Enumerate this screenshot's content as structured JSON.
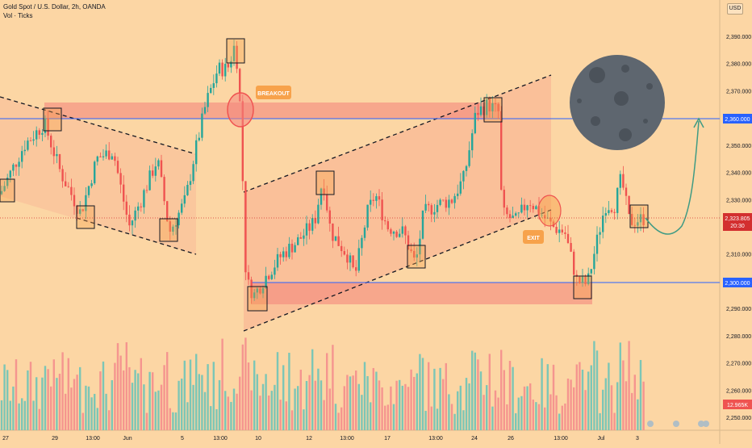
{
  "header": {
    "title": "Gold Spot / U.S. Dollar, 2h, OANDA",
    "indicator": "Vol · Ticks",
    "currency": "USD"
  },
  "colors": {
    "background": "#fcd6a4",
    "up": "#26a69a",
    "down": "#ef5350",
    "vol_up": "#7cc6b6",
    "vol_down": "#f5958f",
    "zone": "#f4877d",
    "level_line": "#2962ff",
    "price_tag": "#d32f2f",
    "callout": "#f7a24b",
    "moon": "#5e666f",
    "projection": "#3f9b84"
  },
  "price_scale": [
    "2,390.000",
    "2,380.000",
    "2,370.000",
    "2,360.000",
    "2,350.000",
    "2,340.000",
    "2,330.000",
    "2,320.000",
    "2,310.000",
    "2,300.000",
    "2,290.000",
    "2,280.000",
    "2,270.000",
    "2,260.000",
    "2,250.000"
  ],
  "time_axis": [
    "27",
    "29",
    "13:00",
    "Jun",
    "5",
    "13:00",
    "10",
    "12",
    "13:00",
    "17",
    "13:00",
    "24",
    "26",
    "13:00",
    "Jul",
    "3"
  ],
  "tags": {
    "level_upper": "2,360.000",
    "level_lower": "2,300.000",
    "last_price": "2,323.805",
    "countdown": "20:30",
    "volume": "12.965K"
  },
  "annotations": {
    "breakout": "BREAKOUT",
    "exit": "EXIT"
  },
  "chart_data": {
    "type": "candlestick",
    "symbol": "XAUUSD",
    "interval": "2h",
    "ylim": [
      2248,
      2398
    ],
    "key_levels": [
      2360,
      2300
    ],
    "last_price": 2323.805,
    "price_path": [
      [
        0,
        2332
      ],
      [
        10,
        2338
      ],
      [
        30,
        2350
      ],
      [
        55,
        2358
      ],
      [
        75,
        2340
      ],
      [
        100,
        2325
      ],
      [
        120,
        2345
      ],
      [
        140,
        2348
      ],
      [
        160,
        2320
      ],
      [
        175,
        2330
      ],
      [
        195,
        2345
      ],
      [
        210,
        2318
      ],
      [
        230,
        2330
      ],
      [
        240,
        2345
      ],
      [
        255,
        2365
      ],
      [
        270,
        2378
      ],
      [
        282,
        2378
      ],
      [
        292,
        2388
      ],
      [
        298,
        2362
      ],
      [
        305,
        2300
      ],
      [
        315,
        2295
      ],
      [
        330,
        2302
      ],
      [
        350,
        2310
      ],
      [
        370,
        2315
      ],
      [
        390,
        2322
      ],
      [
        400,
        2338
      ],
      [
        410,
        2318
      ],
      [
        430,
        2310
      ],
      [
        440,
        2302
      ],
      [
        455,
        2325
      ],
      [
        465,
        2332
      ],
      [
        480,
        2320
      ],
      [
        500,
        2318
      ],
      [
        515,
        2306
      ],
      [
        525,
        2325
      ],
      [
        540,
        2328
      ],
      [
        560,
        2330
      ],
      [
        575,
        2338
      ],
      [
        590,
        2362
      ],
      [
        605,
        2365
      ],
      [
        618,
        2362
      ],
      [
        622,
        2325
      ],
      [
        640,
        2322
      ],
      [
        655,
        2330
      ],
      [
        670,
        2325
      ],
      [
        685,
        2320
      ],
      [
        700,
        2318
      ],
      [
        715,
        2300
      ],
      [
        728,
        2299
      ],
      [
        740,
        2315
      ],
      [
        750,
        2328
      ],
      [
        762,
        2328
      ],
      [
        770,
        2338
      ],
      [
        780,
        2322
      ],
      [
        798,
        2323
      ]
    ]
  }
}
